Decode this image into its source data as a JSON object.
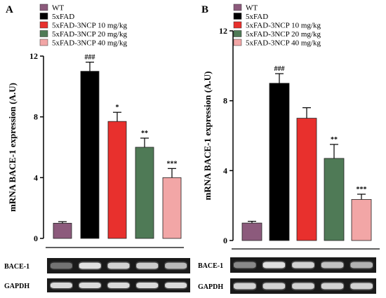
{
  "legend_colors": [
    "#8c5a7c",
    "#000000",
    "#e8302d",
    "#4f7a56",
    "#f2a6a6"
  ],
  "chart_data": [
    {
      "panel": "A",
      "type": "bar",
      "categories": [
        "WT",
        "5xFAD",
        "5xFAD-3NCP 10 mg/kg",
        "5xFAD-3NCP 20 mg/kg",
        "5xFAD-3NCP 40 mg/kg"
      ],
      "values": [
        1.0,
        11.0,
        7.7,
        6.0,
        4.0
      ],
      "errors": [
        0.1,
        0.6,
        0.6,
        0.6,
        0.6
      ],
      "significance": [
        "",
        "###",
        "*",
        "**",
        "***"
      ],
      "ylabel": "mRNA BACE-1 expression (A.U)",
      "ylim": [
        0,
        12
      ],
      "yticks": [
        0,
        4,
        8,
        12
      ],
      "legend_position": "top-left",
      "blots": [
        {
          "label": "BACE-1",
          "intensity": [
            0.35,
            0.95,
            0.85,
            0.8,
            0.7
          ]
        },
        {
          "label": "GAPDH",
          "intensity": [
            0.9,
            0.9,
            0.9,
            0.9,
            0.9
          ]
        }
      ]
    },
    {
      "panel": "B",
      "type": "bar",
      "categories": [
        "WT",
        "5xFAD",
        "5xFAD-3NCP 10 mg/kg",
        "5xFAD-3NCP 20 mg/kg",
        "5xFAD-3NCP 40 mg/kg"
      ],
      "values": [
        1.0,
        9.0,
        7.0,
        4.7,
        2.35
      ],
      "errors": [
        0.1,
        0.55,
        0.6,
        0.8,
        0.3
      ],
      "significance": [
        "",
        "###",
        "",
        "**",
        "***"
      ],
      "ylabel": "mRNA BACE-1 expression (A.U)",
      "ylim": [
        0,
        12
      ],
      "yticks": [
        0,
        4,
        8,
        12
      ],
      "legend_position": "top-left",
      "blots": [
        {
          "label": "BACE-1",
          "intensity": [
            0.45,
            0.95,
            0.85,
            0.75,
            0.65
          ]
        },
        {
          "label": "GAPDH",
          "intensity": [
            0.85,
            0.85,
            0.85,
            0.85,
            0.85
          ]
        }
      ]
    }
  ]
}
